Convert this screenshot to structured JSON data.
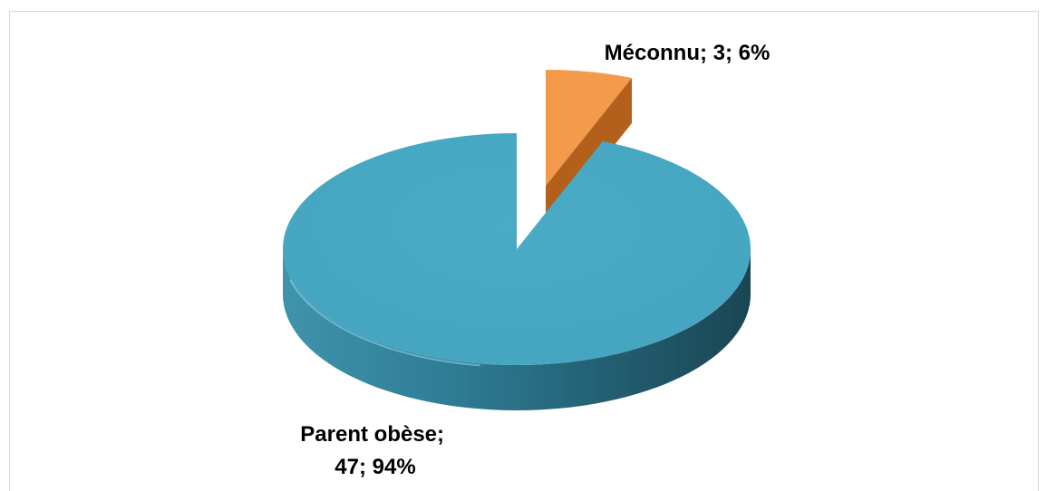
{
  "chart_data": {
    "type": "pie",
    "style": "3d-exploded",
    "title": "",
    "categories": [
      "Méconnu",
      "Parent obèse"
    ],
    "values": [
      3,
      47
    ],
    "percentages": [
      6,
      94
    ],
    "labels": [
      {
        "line1": "Méconnu; 3; 6%",
        "line2": ""
      },
      {
        "line1": "Parent obèse;",
        "line2": "47; 94%"
      }
    ],
    "colors": [
      "#f39a4b",
      "#4aa9c4"
    ],
    "legend": "none"
  }
}
